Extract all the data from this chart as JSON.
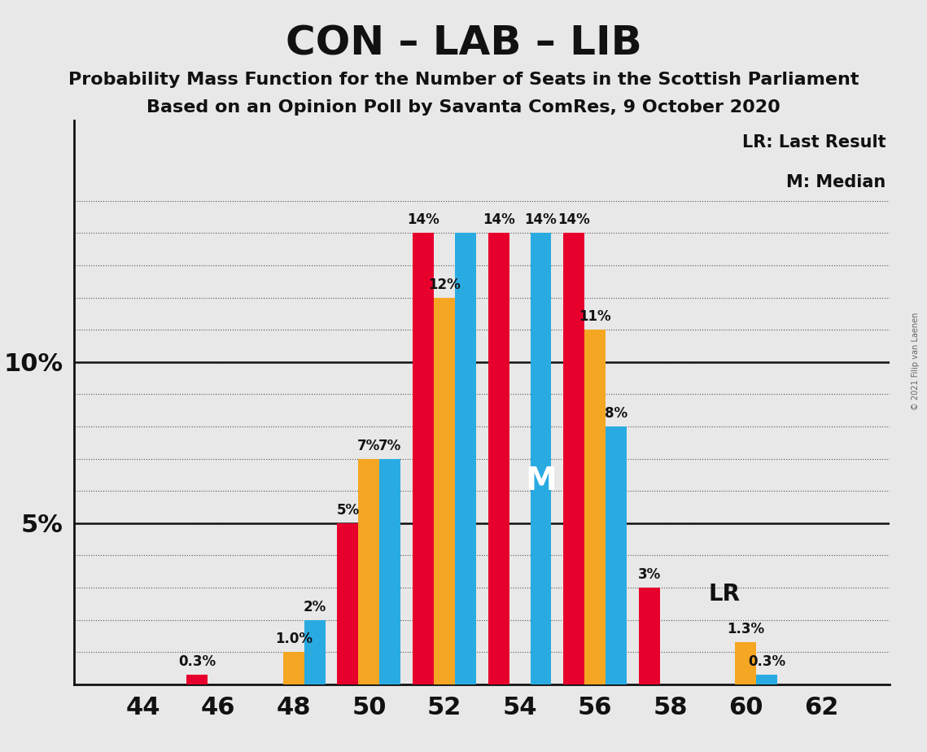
{
  "title": "CON – LAB – LIB",
  "subtitle1": "Probability Mass Function for the Number of Seats in the Scottish Parliament",
  "subtitle2": "Based on an Opinion Poll by Savanta ComRes, 9 October 2020",
  "copyright": "© 2021 Filip van Laenen",
  "x_labels": [
    44,
    46,
    48,
    50,
    52,
    54,
    56,
    58,
    60,
    62
  ],
  "con_values": [
    0.0,
    0.3,
    0.0,
    5.0,
    14.0,
    14.0,
    14.0,
    3.0,
    0.0,
    0.0
  ],
  "lab_values": [
    0.0,
    0.0,
    1.0,
    7.0,
    12.0,
    0.0,
    11.0,
    0.0,
    1.3,
    0.0
  ],
  "lib_values": [
    0.0,
    0.0,
    2.0,
    7.0,
    14.0,
    14.0,
    8.0,
    0.0,
    0.3,
    0.0
  ],
  "con_labels": [
    "",
    "0.3%",
    "",
    "5%",
    "14%",
    "14%",
    "14%",
    "3%",
    "",
    ""
  ],
  "lab_labels": [
    "",
    "",
    "1.0%",
    "7%",
    "12%",
    "",
    "11%",
    "",
    "1.3%",
    ""
  ],
  "lib_labels": [
    "",
    "",
    "2%",
    "7%",
    "",
    "14%",
    "8%",
    "",
    "0.3%",
    ""
  ],
  "con_color": "#E8002D",
  "lab_color": "#F5A623",
  "lib_color": "#29ABE2",
  "background_color": "#E8E8E8",
  "bar_width": 0.28,
  "legend_lr": "LR: Last Result",
  "legend_m": "M: Median",
  "median_bar_idx": 5,
  "median_series": "lib",
  "lr_bar_idx": 7,
  "lr_series": "con"
}
